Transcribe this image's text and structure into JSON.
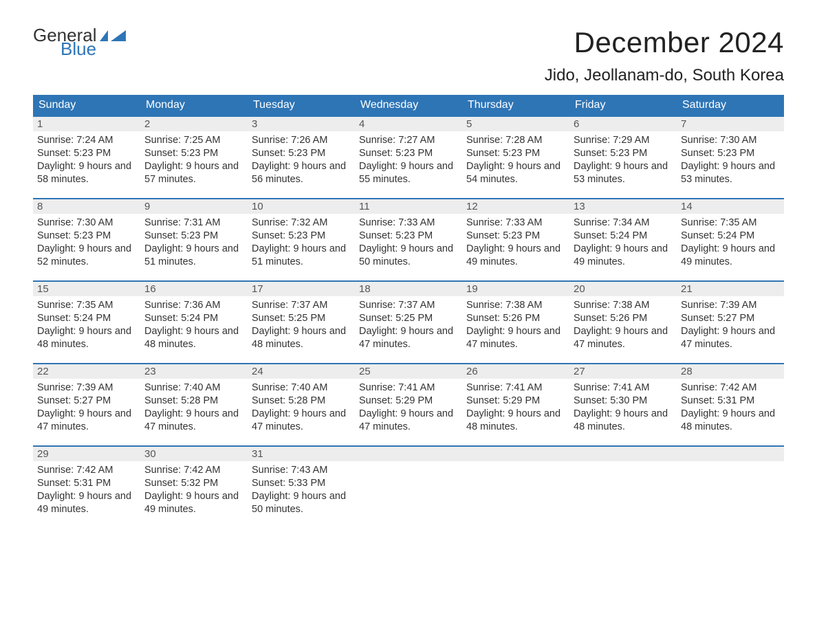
{
  "logo": {
    "word1": "General",
    "word2": "Blue",
    "shape_color": "#2e75b6"
  },
  "title": "December 2024",
  "location": "Jido, Jeollanam-do, South Korea",
  "colors": {
    "header_bg": "#2e75b6",
    "header_text": "#ffffff",
    "week_divider": "#2e75b6",
    "daynum_bg": "#ededed",
    "daynum_text": "#555555",
    "body_text": "#333333",
    "background": "#ffffff"
  },
  "typography": {
    "title_fontsize": 42,
    "location_fontsize": 24,
    "weekday_fontsize": 16,
    "body_fontsize": 14.5,
    "font_family": "Arial"
  },
  "layout": {
    "columns": 7,
    "rows": 5
  },
  "weekdays": [
    "Sunday",
    "Monday",
    "Tuesday",
    "Wednesday",
    "Thursday",
    "Friday",
    "Saturday"
  ],
  "days": [
    {
      "n": 1,
      "sunrise": "7:24 AM",
      "sunset": "5:23 PM",
      "daylight": "9 hours and 58 minutes."
    },
    {
      "n": 2,
      "sunrise": "7:25 AM",
      "sunset": "5:23 PM",
      "daylight": "9 hours and 57 minutes."
    },
    {
      "n": 3,
      "sunrise": "7:26 AM",
      "sunset": "5:23 PM",
      "daylight": "9 hours and 56 minutes."
    },
    {
      "n": 4,
      "sunrise": "7:27 AM",
      "sunset": "5:23 PM",
      "daylight": "9 hours and 55 minutes."
    },
    {
      "n": 5,
      "sunrise": "7:28 AM",
      "sunset": "5:23 PM",
      "daylight": "9 hours and 54 minutes."
    },
    {
      "n": 6,
      "sunrise": "7:29 AM",
      "sunset": "5:23 PM",
      "daylight": "9 hours and 53 minutes."
    },
    {
      "n": 7,
      "sunrise": "7:30 AM",
      "sunset": "5:23 PM",
      "daylight": "9 hours and 53 minutes."
    },
    {
      "n": 8,
      "sunrise": "7:30 AM",
      "sunset": "5:23 PM",
      "daylight": "9 hours and 52 minutes."
    },
    {
      "n": 9,
      "sunrise": "7:31 AM",
      "sunset": "5:23 PM",
      "daylight": "9 hours and 51 minutes."
    },
    {
      "n": 10,
      "sunrise": "7:32 AM",
      "sunset": "5:23 PM",
      "daylight": "9 hours and 51 minutes."
    },
    {
      "n": 11,
      "sunrise": "7:33 AM",
      "sunset": "5:23 PM",
      "daylight": "9 hours and 50 minutes."
    },
    {
      "n": 12,
      "sunrise": "7:33 AM",
      "sunset": "5:23 PM",
      "daylight": "9 hours and 49 minutes."
    },
    {
      "n": 13,
      "sunrise": "7:34 AM",
      "sunset": "5:24 PM",
      "daylight": "9 hours and 49 minutes."
    },
    {
      "n": 14,
      "sunrise": "7:35 AM",
      "sunset": "5:24 PM",
      "daylight": "9 hours and 49 minutes."
    },
    {
      "n": 15,
      "sunrise": "7:35 AM",
      "sunset": "5:24 PM",
      "daylight": "9 hours and 48 minutes."
    },
    {
      "n": 16,
      "sunrise": "7:36 AM",
      "sunset": "5:24 PM",
      "daylight": "9 hours and 48 minutes."
    },
    {
      "n": 17,
      "sunrise": "7:37 AM",
      "sunset": "5:25 PM",
      "daylight": "9 hours and 48 minutes."
    },
    {
      "n": 18,
      "sunrise": "7:37 AM",
      "sunset": "5:25 PM",
      "daylight": "9 hours and 47 minutes."
    },
    {
      "n": 19,
      "sunrise": "7:38 AM",
      "sunset": "5:26 PM",
      "daylight": "9 hours and 47 minutes."
    },
    {
      "n": 20,
      "sunrise": "7:38 AM",
      "sunset": "5:26 PM",
      "daylight": "9 hours and 47 minutes."
    },
    {
      "n": 21,
      "sunrise": "7:39 AM",
      "sunset": "5:27 PM",
      "daylight": "9 hours and 47 minutes."
    },
    {
      "n": 22,
      "sunrise": "7:39 AM",
      "sunset": "5:27 PM",
      "daylight": "9 hours and 47 minutes."
    },
    {
      "n": 23,
      "sunrise": "7:40 AM",
      "sunset": "5:28 PM",
      "daylight": "9 hours and 47 minutes."
    },
    {
      "n": 24,
      "sunrise": "7:40 AM",
      "sunset": "5:28 PM",
      "daylight": "9 hours and 47 minutes."
    },
    {
      "n": 25,
      "sunrise": "7:41 AM",
      "sunset": "5:29 PM",
      "daylight": "9 hours and 47 minutes."
    },
    {
      "n": 26,
      "sunrise": "7:41 AM",
      "sunset": "5:29 PM",
      "daylight": "9 hours and 48 minutes."
    },
    {
      "n": 27,
      "sunrise": "7:41 AM",
      "sunset": "5:30 PM",
      "daylight": "9 hours and 48 minutes."
    },
    {
      "n": 28,
      "sunrise": "7:42 AM",
      "sunset": "5:31 PM",
      "daylight": "9 hours and 48 minutes."
    },
    {
      "n": 29,
      "sunrise": "7:42 AM",
      "sunset": "5:31 PM",
      "daylight": "9 hours and 49 minutes."
    },
    {
      "n": 30,
      "sunrise": "7:42 AM",
      "sunset": "5:32 PM",
      "daylight": "9 hours and 49 minutes."
    },
    {
      "n": 31,
      "sunrise": "7:43 AM",
      "sunset": "5:33 PM",
      "daylight": "9 hours and 50 minutes."
    }
  ],
  "labels": {
    "sunrise": "Sunrise:",
    "sunset": "Sunset:",
    "daylight": "Daylight:"
  }
}
